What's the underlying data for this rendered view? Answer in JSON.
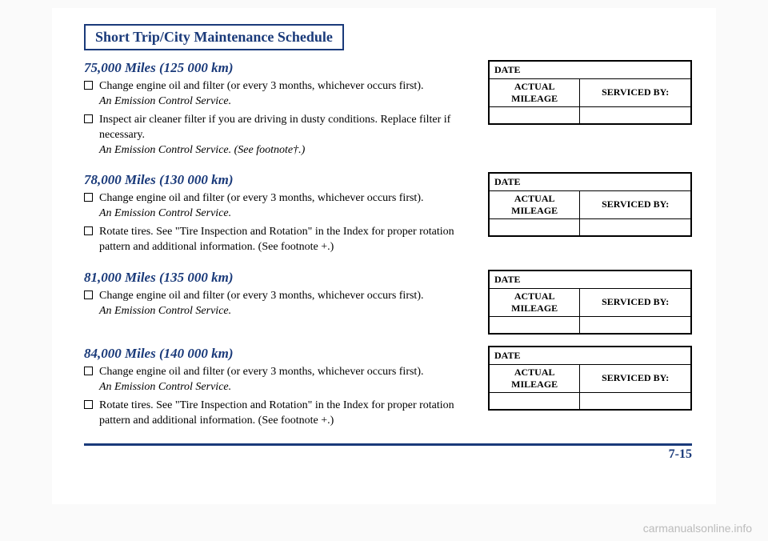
{
  "title": "Short Trip/City Maintenance Schedule",
  "footer": {
    "page": "7-15"
  },
  "watermark": "carmanualsonline.info",
  "table_headers": {
    "date": "DATE",
    "mileage": "ACTUAL MILEAGE",
    "serviced": "SERVICED BY:"
  },
  "colors": {
    "accent": "#1a3a7a",
    "text": "#000000",
    "watermark": "#bbbbbb"
  },
  "sections": [
    {
      "heading": "75,000 Miles (125 000 km)",
      "items": [
        {
          "main": "Change engine oil and filter (or every 3 months, whichever occurs first).",
          "sub": "An Emission Control Service."
        },
        {
          "main": "Inspect air cleaner filter if you are driving in dusty conditions. Replace filter if necessary.",
          "sub": "An Emission Control Service. (See footnote†.)"
        }
      ]
    },
    {
      "heading": "78,000 Miles (130 000 km)",
      "items": [
        {
          "main": "Change engine oil and filter (or every 3 months, whichever occurs first).",
          "sub": "An Emission Control Service."
        },
        {
          "main": "Rotate tires. See \"Tire Inspection and Rotation\" in the Index for proper rotation pattern and additional information. (See footnote +.)",
          "sub": ""
        }
      ]
    },
    {
      "heading": "81,000 Miles (135 000 km)",
      "items": [
        {
          "main": "Change engine oil and filter (or every 3 months, whichever occurs first).",
          "sub": "An Emission Control Service."
        }
      ]
    },
    {
      "heading": "84,000 Miles (140 000 km)",
      "items": [
        {
          "main": "Change engine oil and filter (or every 3 months, whichever occurs first).",
          "sub": "An Emission Control Service."
        },
        {
          "main": "Rotate tires. See \"Tire Inspection and Rotation\" in the Index for proper rotation pattern and additional information. (See footnote +.)",
          "sub": ""
        }
      ]
    }
  ]
}
